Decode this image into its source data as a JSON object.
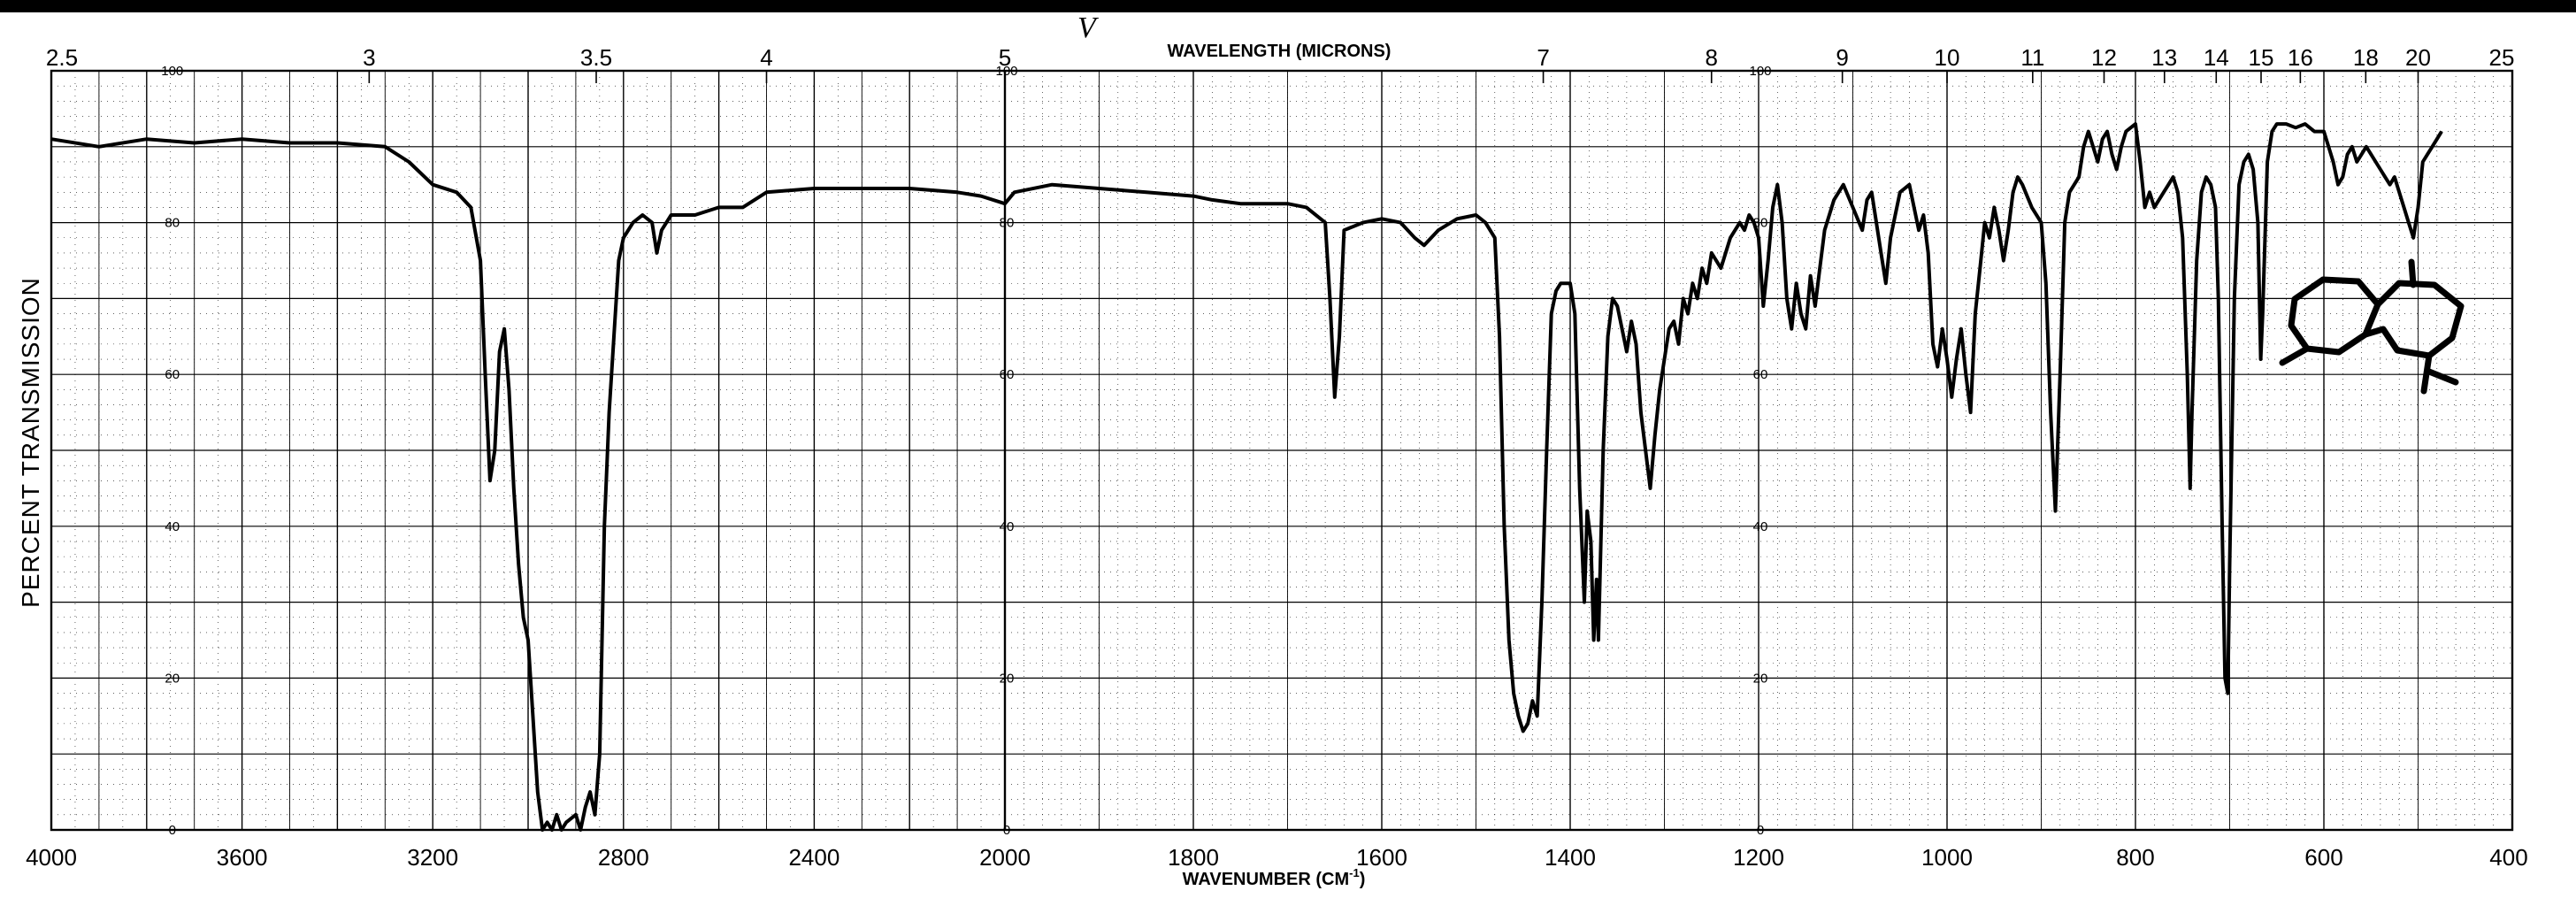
{
  "chart_data": {
    "type": "line",
    "title": "",
    "top_axis_label": "WAVELENGTH (MICRONS)",
    "xlabel": "WAVENUMBER (CM",
    "xlabel_superscript": "-1",
    "xlabel_close": ")",
    "ylabel": "PERCENT TRANSMISSION",
    "pen_mark": "V",
    "xlim": [
      4000,
      400
    ],
    "ylim": [
      0,
      100
    ],
    "x_scale_breaks": [
      {
        "from": 4000,
        "to": 2000,
        "scale": "compressed"
      },
      {
        "from": 2000,
        "to": 400,
        "scale": "expanded"
      }
    ],
    "bottom_ticks": [
      {
        "value": 4000,
        "label": "4000"
      },
      {
        "value": 3600,
        "label": "3600"
      },
      {
        "value": 3200,
        "label": "3200"
      },
      {
        "value": 2800,
        "label": "2800"
      },
      {
        "value": 2400,
        "label": "2400"
      },
      {
        "value": 2000,
        "label": "2000"
      },
      {
        "value": 1800,
        "label": "1800"
      },
      {
        "value": 1600,
        "label": "1600"
      },
      {
        "value": 1400,
        "label": "1400"
      },
      {
        "value": 1200,
        "label": "1200"
      },
      {
        "value": 1000,
        "label": "1000"
      },
      {
        "value": 800,
        "label": "800"
      },
      {
        "value": 600,
        "label": "600"
      },
      {
        "value": 400,
        "label": "400"
      }
    ],
    "top_ticks": [
      {
        "microns": 2.5,
        "label": "2.5"
      },
      {
        "microns": 3,
        "label": "3"
      },
      {
        "microns": 3.5,
        "label": "3.5"
      },
      {
        "microns": 4,
        "label": "4"
      },
      {
        "microns": 5,
        "label": "5"
      },
      {
        "microns": 7,
        "label": "7"
      },
      {
        "microns": 8,
        "label": "8"
      },
      {
        "microns": 9,
        "label": "9"
      },
      {
        "microns": 10,
        "label": "10"
      },
      {
        "microns": 11,
        "label": "11"
      },
      {
        "microns": 12,
        "label": "12"
      },
      {
        "microns": 13,
        "label": "13"
      },
      {
        "microns": 14,
        "label": "14"
      },
      {
        "microns": 15,
        "label": "15"
      },
      {
        "microns": 16,
        "label": "16"
      },
      {
        "microns": 18,
        "label": "18"
      },
      {
        "microns": 20,
        "label": "20"
      },
      {
        "microns": 25,
        "label": "25"
      }
    ],
    "percent_ticks": [
      {
        "value": 100,
        "label": "100"
      },
      {
        "value": 80,
        "label": "80"
      },
      {
        "value": 60,
        "label": "60"
      },
      {
        "value": 40,
        "label": "40"
      },
      {
        "value": 20,
        "label": "20"
      },
      {
        "value": 0,
        "label": "0"
      }
    ],
    "percent_label_columns": [
      3750,
      2000,
      1200
    ],
    "grid": true,
    "series": [
      {
        "points": [
          [
            4000,
            91
          ],
          [
            3900,
            90
          ],
          [
            3800,
            91
          ],
          [
            3700,
            90.5
          ],
          [
            3600,
            91
          ],
          [
            3500,
            90.5
          ],
          [
            3400,
            90.5
          ],
          [
            3300,
            90
          ],
          [
            3250,
            88
          ],
          [
            3200,
            85
          ],
          [
            3150,
            84
          ],
          [
            3120,
            82
          ],
          [
            3100,
            75
          ],
          [
            3090,
            60
          ],
          [
            3080,
            46
          ],
          [
            3070,
            50
          ],
          [
            3060,
            63
          ],
          [
            3050,
            66
          ],
          [
            3040,
            58
          ],
          [
            3030,
            45
          ],
          [
            3020,
            35
          ],
          [
            3010,
            28
          ],
          [
            3000,
            25
          ],
          [
            2990,
            15
          ],
          [
            2980,
            5
          ],
          [
            2970,
            0
          ],
          [
            2960,
            1
          ],
          [
            2950,
            0
          ],
          [
            2940,
            2
          ],
          [
            2930,
            0
          ],
          [
            2920,
            1
          ],
          [
            2900,
            2
          ],
          [
            2890,
            0
          ],
          [
            2880,
            3
          ],
          [
            2870,
            5
          ],
          [
            2860,
            2
          ],
          [
            2850,
            10
          ],
          [
            2840,
            40
          ],
          [
            2830,
            55
          ],
          [
            2820,
            65
          ],
          [
            2810,
            75
          ],
          [
            2800,
            78
          ],
          [
            2780,
            80
          ],
          [
            2760,
            81
          ],
          [
            2740,
            80
          ],
          [
            2730,
            76
          ],
          [
            2720,
            79
          ],
          [
            2700,
            81
          ],
          [
            2650,
            81
          ],
          [
            2600,
            82
          ],
          [
            2550,
            82
          ],
          [
            2500,
            84
          ],
          [
            2400,
            84.5
          ],
          [
            2300,
            84.5
          ],
          [
            2200,
            84.5
          ],
          [
            2100,
            84
          ],
          [
            2050,
            83.5
          ],
          [
            2000,
            82.5
          ],
          [
            1990,
            84
          ],
          [
            1950,
            85
          ],
          [
            1900,
            84.5
          ],
          [
            1850,
            84
          ],
          [
            1800,
            83.5
          ],
          [
            1780,
            83
          ],
          [
            1750,
            82.5
          ],
          [
            1700,
            82.5
          ],
          [
            1680,
            82
          ],
          [
            1660,
            80
          ],
          [
            1655,
            70
          ],
          [
            1650,
            57
          ],
          [
            1645,
            65
          ],
          [
            1640,
            79
          ],
          [
            1620,
            80
          ],
          [
            1600,
            80.5
          ],
          [
            1580,
            80
          ],
          [
            1565,
            78
          ],
          [
            1555,
            77
          ],
          [
            1540,
            79
          ],
          [
            1520,
            80.5
          ],
          [
            1500,
            81
          ],
          [
            1490,
            80
          ],
          [
            1480,
            78
          ],
          [
            1475,
            65
          ],
          [
            1470,
            40
          ],
          [
            1465,
            25
          ],
          [
            1460,
            18
          ],
          [
            1455,
            15
          ],
          [
            1450,
            13
          ],
          [
            1445,
            14
          ],
          [
            1440,
            17
          ],
          [
            1435,
            15
          ],
          [
            1430,
            30
          ],
          [
            1425,
            50
          ],
          [
            1420,
            68
          ],
          [
            1415,
            71
          ],
          [
            1410,
            72
          ],
          [
            1400,
            72
          ],
          [
            1395,
            68
          ],
          [
            1390,
            45
          ],
          [
            1385,
            30
          ],
          [
            1382,
            42
          ],
          [
            1378,
            38
          ],
          [
            1375,
            25
          ],
          [
            1372,
            33
          ],
          [
            1370,
            25
          ],
          [
            1365,
            50
          ],
          [
            1360,
            65
          ],
          [
            1355,
            70
          ],
          [
            1350,
            69
          ],
          [
            1345,
            66
          ],
          [
            1340,
            63
          ],
          [
            1335,
            67
          ],
          [
            1330,
            64
          ],
          [
            1325,
            55
          ],
          [
            1320,
            50
          ],
          [
            1315,
            45
          ],
          [
            1310,
            52
          ],
          [
            1305,
            58
          ],
          [
            1300,
            62
          ],
          [
            1295,
            66
          ],
          [
            1290,
            67
          ],
          [
            1285,
            64
          ],
          [
            1280,
            70
          ],
          [
            1275,
            68
          ],
          [
            1270,
            72
          ],
          [
            1265,
            70
          ],
          [
            1260,
            74
          ],
          [
            1255,
            72
          ],
          [
            1250,
            76
          ],
          [
            1240,
            74
          ],
          [
            1230,
            78
          ],
          [
            1220,
            80
          ],
          [
            1215,
            79
          ],
          [
            1210,
            81
          ],
          [
            1205,
            80
          ],
          [
            1200,
            78
          ],
          [
            1195,
            69
          ],
          [
            1190,
            75
          ],
          [
            1185,
            82
          ],
          [
            1180,
            85
          ],
          [
            1175,
            80
          ],
          [
            1170,
            70
          ],
          [
            1165,
            66
          ],
          [
            1160,
            72
          ],
          [
            1155,
            68
          ],
          [
            1150,
            66
          ],
          [
            1145,
            73
          ],
          [
            1140,
            69
          ],
          [
            1135,
            74
          ],
          [
            1130,
            79
          ],
          [
            1120,
            83
          ],
          [
            1110,
            85
          ],
          [
            1100,
            82
          ],
          [
            1090,
            79
          ],
          [
            1085,
            83
          ],
          [
            1080,
            84
          ],
          [
            1075,
            80
          ],
          [
            1070,
            76
          ],
          [
            1065,
            72
          ],
          [
            1060,
            78
          ],
          [
            1050,
            84
          ],
          [
            1040,
            85
          ],
          [
            1035,
            82
          ],
          [
            1030,
            79
          ],
          [
            1025,
            81
          ],
          [
            1020,
            76
          ],
          [
            1015,
            64
          ],
          [
            1010,
            61
          ],
          [
            1005,
            66
          ],
          [
            1000,
            62
          ],
          [
            995,
            57
          ],
          [
            990,
            62
          ],
          [
            985,
            66
          ],
          [
            980,
            60
          ],
          [
            975,
            55
          ],
          [
            970,
            68
          ],
          [
            965,
            74
          ],
          [
            960,
            80
          ],
          [
            955,
            78
          ],
          [
            950,
            82
          ],
          [
            945,
            79
          ],
          [
            940,
            75
          ],
          [
            935,
            79
          ],
          [
            930,
            84
          ],
          [
            925,
            86
          ],
          [
            920,
            85
          ],
          [
            910,
            82
          ],
          [
            900,
            80
          ],
          [
            895,
            72
          ],
          [
            890,
            55
          ],
          [
            885,
            42
          ],
          [
            880,
            60
          ],
          [
            875,
            80
          ],
          [
            870,
            84
          ],
          [
            860,
            86
          ],
          [
            855,
            90
          ],
          [
            850,
            92
          ],
          [
            845,
            90
          ],
          [
            840,
            88
          ],
          [
            835,
            91
          ],
          [
            830,
            92
          ],
          [
            825,
            89
          ],
          [
            820,
            87
          ],
          [
            815,
            90
          ],
          [
            810,
            92
          ],
          [
            800,
            93
          ],
          [
            795,
            88
          ],
          [
            790,
            82
          ],
          [
            785,
            84
          ],
          [
            780,
            82
          ],
          [
            770,
            84
          ],
          [
            765,
            85
          ],
          [
            760,
            86
          ],
          [
            755,
            84
          ],
          [
            750,
            78
          ],
          [
            745,
            60
          ],
          [
            742,
            45
          ],
          [
            740,
            55
          ],
          [
            735,
            75
          ],
          [
            730,
            84
          ],
          [
            725,
            86
          ],
          [
            720,
            85
          ],
          [
            715,
            82
          ],
          [
            712,
            70
          ],
          [
            708,
            40
          ],
          [
            705,
            20
          ],
          [
            702,
            18
          ],
          [
            700,
            35
          ],
          [
            695,
            70
          ],
          [
            690,
            85
          ],
          [
            685,
            88
          ],
          [
            680,
            89
          ],
          [
            675,
            87
          ],
          [
            670,
            80
          ],
          [
            667,
            62
          ],
          [
            665,
            68
          ],
          [
            660,
            88
          ],
          [
            655,
            92
          ],
          [
            650,
            93
          ],
          [
            640,
            93
          ],
          [
            630,
            92.5
          ],
          [
            620,
            93
          ],
          [
            610,
            92
          ],
          [
            600,
            92
          ],
          [
            595,
            90
          ],
          [
            590,
            88
          ],
          [
            585,
            85
          ],
          [
            580,
            86
          ],
          [
            575,
            89
          ],
          [
            570,
            90
          ],
          [
            565,
            88
          ],
          [
            560,
            89
          ],
          [
            555,
            90
          ],
          [
            550,
            89
          ],
          [
            545,
            88
          ],
          [
            540,
            87
          ],
          [
            535,
            86
          ],
          [
            530,
            85
          ],
          [
            525,
            86
          ],
          [
            520,
            84
          ],
          [
            515,
            82
          ],
          [
            510,
            80
          ],
          [
            505,
            78
          ],
          [
            500,
            82
          ],
          [
            495,
            88
          ],
          [
            490,
            89
          ],
          [
            485,
            90
          ],
          [
            480,
            91
          ],
          [
            475,
            92
          ]
        ]
      }
    ]
  }
}
